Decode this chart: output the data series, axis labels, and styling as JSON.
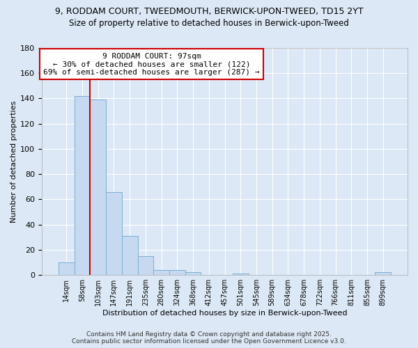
{
  "title_line1": "9, RODDAM COURT, TWEEDMOUTH, BERWICK-UPON-TWEED, TD15 2YT",
  "title_line2": "Size of property relative to detached houses in Berwick-upon-Tweed",
  "xlabel": "Distribution of detached houses by size in Berwick-upon-Tweed",
  "ylabel": "Number of detached properties",
  "categories": [
    "14sqm",
    "58sqm",
    "103sqm",
    "147sqm",
    "191sqm",
    "235sqm",
    "280sqm",
    "324sqm",
    "368sqm",
    "412sqm",
    "457sqm",
    "501sqm",
    "545sqm",
    "589sqm",
    "634sqm",
    "678sqm",
    "722sqm",
    "766sqm",
    "811sqm",
    "855sqm",
    "899sqm"
  ],
  "values": [
    10,
    142,
    139,
    66,
    31,
    15,
    4,
    4,
    2,
    0,
    0,
    1,
    0,
    0,
    0,
    0,
    0,
    0,
    0,
    0,
    2
  ],
  "bar_color": "#c6d9f0",
  "bar_edge_color": "#7bafd4",
  "vline_color": "#cc0000",
  "vline_pos": 1.5,
  "annotation_line1": "9 RODDAM COURT: 97sqm",
  "annotation_line2": "← 30% of detached houses are smaller (122)",
  "annotation_line3": "69% of semi-detached houses are larger (287) →",
  "annotation_box_color": "#cc0000",
  "annotation_box_fill": "#ffffff",
  "ylim": [
    0,
    180
  ],
  "yticks": [
    0,
    20,
    40,
    60,
    80,
    100,
    120,
    140,
    160,
    180
  ],
  "background_color": "#dce8f5",
  "grid_color": "#ffffff",
  "footer_line1": "Contains HM Land Registry data © Crown copyright and database right 2025.",
  "footer_line2": "Contains public sector information licensed under the Open Government Licence v3.0.",
  "title_fontsize": 9,
  "subtitle_fontsize": 8.5,
  "axis_fontsize": 8,
  "tick_fontsize": 7,
  "annotation_fontsize": 8,
  "footer_fontsize": 6.5
}
